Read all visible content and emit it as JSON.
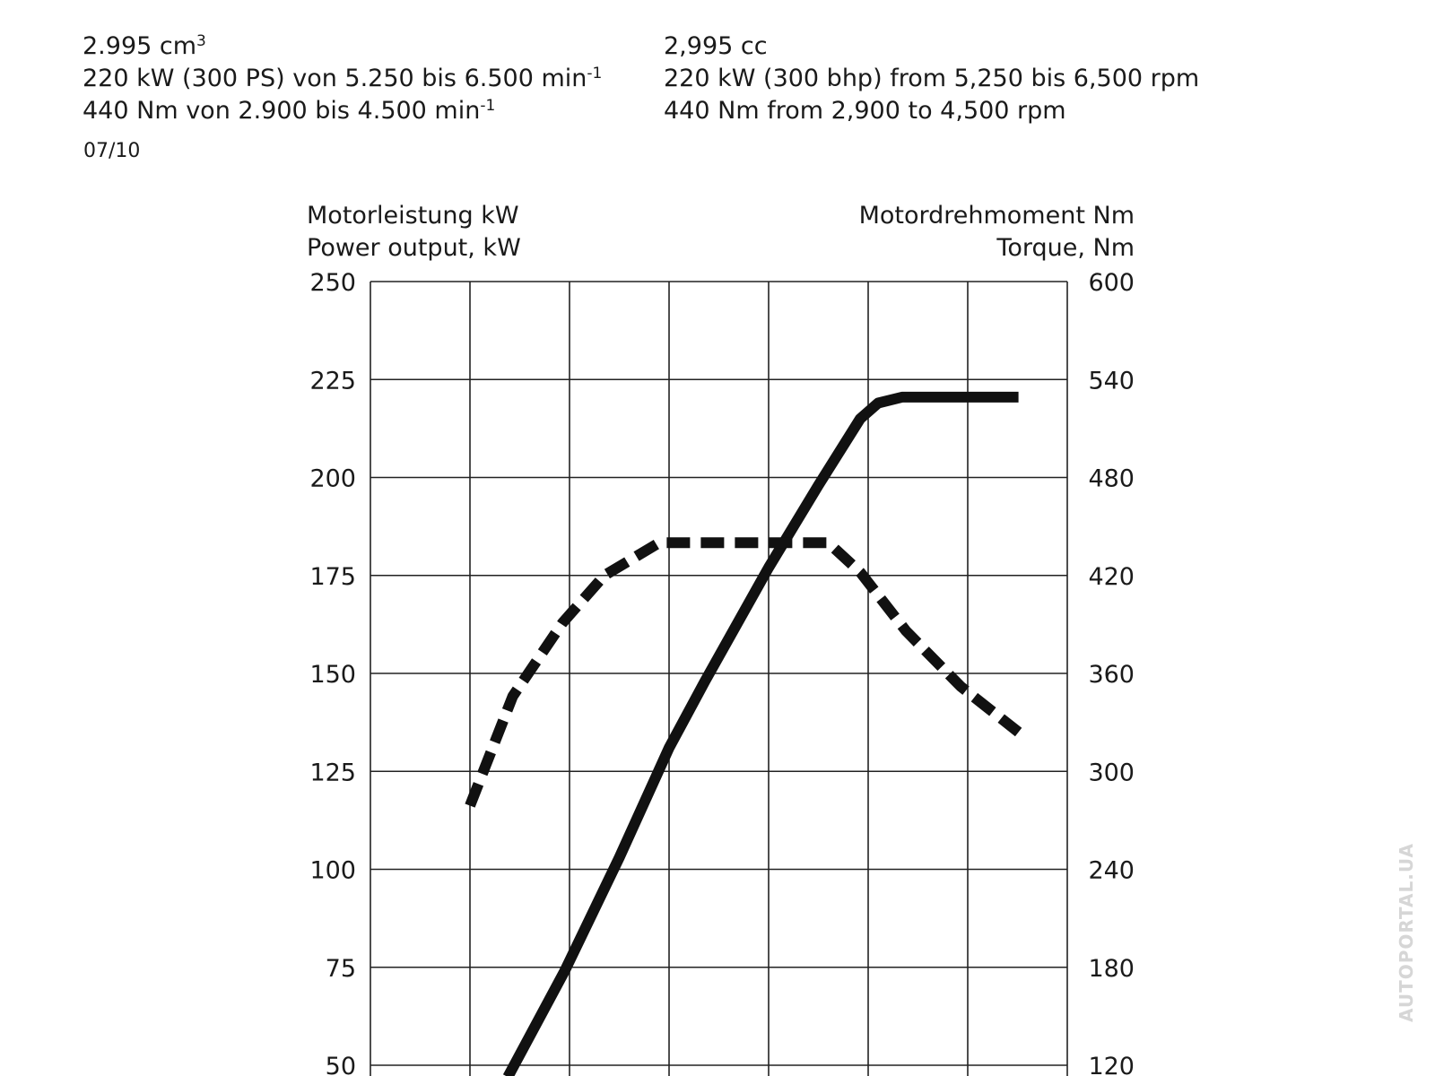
{
  "specs": {
    "de": {
      "displacement": "2.995 cm",
      "displacement_sup": "3",
      "power": "220 kW (300 PS) von 5.250 bis 6.500 min",
      "power_sup": "-1",
      "torque": "440 Nm von 2.900 bis 4.500 min",
      "torque_sup": "-1"
    },
    "en": {
      "displacement": "2,995 cc",
      "power": "220 kW (300 bhp) from 5,250 bis 6,500 rpm",
      "torque": "440 Nm from 2,900 to 4,500 rpm"
    },
    "date": "07/10"
  },
  "watermark": "AUTOPORTAL.UA",
  "chart_data": {
    "type": "line",
    "left_axis_label": [
      "Motorleistung kW",
      "Power output, kW"
    ],
    "right_axis_label": [
      "Motordrehmoment Nm",
      "Torque, Nm"
    ],
    "x_unit": "rpm",
    "xlim": [
      0,
      7000
    ],
    "x_grid": [
      0,
      1000,
      2000,
      3000,
      4000,
      5000,
      6000,
      7000
    ],
    "ylim_left": [
      50,
      250
    ],
    "ylim_right": [
      120,
      600
    ],
    "left_ticks": [
      "250",
      "225",
      "200",
      "175",
      "150",
      "125",
      "100",
      "75",
      "50"
    ],
    "right_ticks": [
      "600",
      "540",
      "480",
      "420",
      "360",
      "300",
      "240",
      "180",
      "120"
    ],
    "grid": true,
    "series": [
      {
        "name": "Power output (kW)",
        "axis": "left",
        "style": "solid",
        "x": [
          1380,
          1950,
          2500,
          3000,
          3360,
          4000,
          4500,
          4920,
          5100,
          5340,
          6510
        ],
        "y": [
          47,
          74,
          103,
          131,
          148,
          177,
          198,
          215,
          219,
          220.5,
          220.5
        ]
      },
      {
        "name": "Torque (Nm)",
        "axis": "right",
        "style": "dashed",
        "x": [
          1000,
          1430,
          1930,
          2350,
          2900,
          4600,
          4920,
          5380,
          5930,
          6510
        ],
        "y": [
          279,
          346,
          391,
          420,
          440,
          440,
          422,
          386,
          352,
          324
        ]
      }
    ]
  }
}
